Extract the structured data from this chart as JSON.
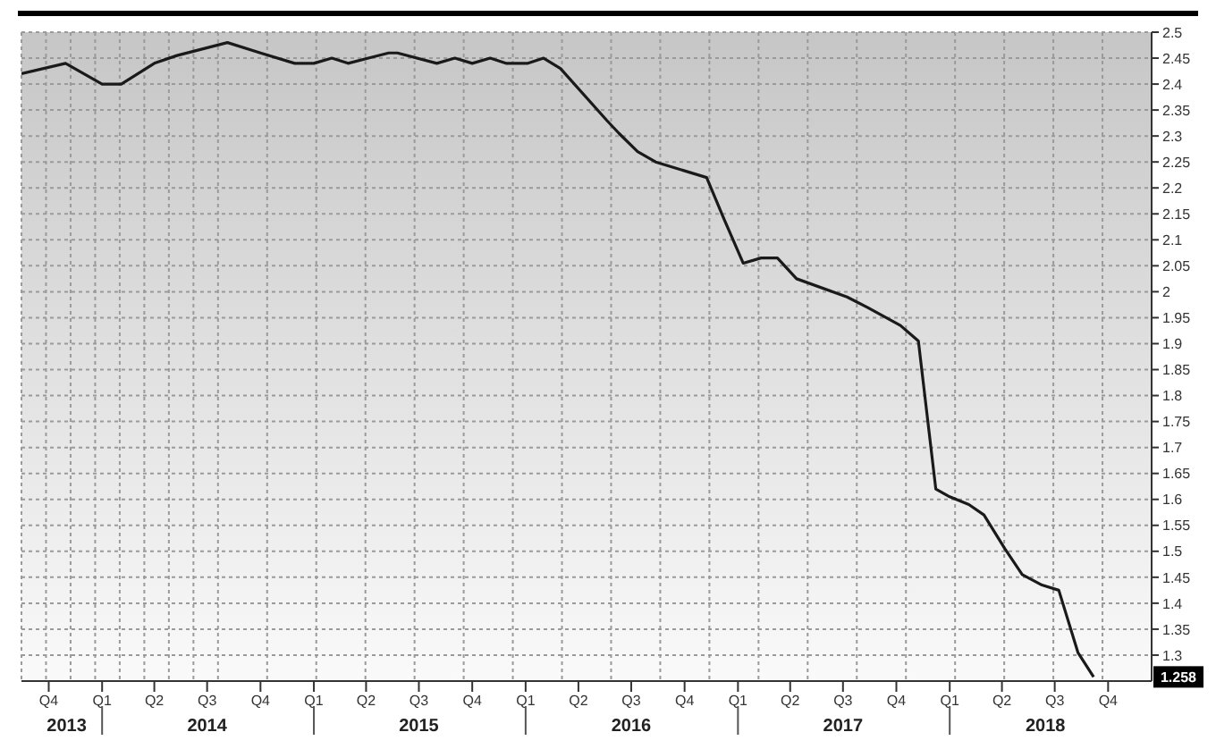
{
  "chart_data": {
    "type": "line",
    "x": [
      "2013-08-15",
      "2013-10-30",
      "2014-01-01",
      "2014-02-03",
      "2014-04-01",
      "2014-05-10",
      "2014-08-05",
      "2014-10-01",
      "2014-11-29",
      "2015-01-01",
      "2015-02-01",
      "2015-03-01",
      "2015-04-05",
      "2015-05-10",
      "2015-05-25",
      "2015-08-01",
      "2015-09-01",
      "2015-10-01",
      "2015-11-01",
      "2015-11-28",
      "2016-01-05",
      "2016-02-01",
      "2016-03-01",
      "2016-05-20",
      "2016-06-10",
      "2016-07-12",
      "2016-08-12",
      "2016-11-08",
      "2016-12-08",
      "2017-01-10",
      "2017-02-10",
      "2017-03-10",
      "2017-04-12",
      "2017-07-08",
      "2017-08-12",
      "2017-10-08",
      "2017-11-08",
      "2017-12-08",
      "2018-01-01",
      "2018-02-03",
      "2018-03-01",
      "2018-04-06",
      "2018-05-06",
      "2018-06-09",
      "2018-07-08",
      "2018-08-10",
      "2018-09-06"
    ],
    "series": [
      {
        "color": "#1a1a1a",
        "values": [
          2.42,
          2.44,
          2.4,
          2.4,
          2.44,
          2.455,
          2.48,
          2.46,
          2.44,
          2.44,
          2.45,
          2.44,
          2.45,
          2.46,
          2.46,
          2.44,
          2.45,
          2.44,
          2.45,
          2.44,
          2.44,
          2.45,
          2.43,
          2.33,
          2.305,
          2.27,
          2.25,
          2.22,
          2.14,
          2.055,
          2.065,
          2.065,
          2.025,
          1.99,
          1.97,
          1.935,
          1.905,
          1.62,
          1.605,
          1.59,
          1.57,
          1.505,
          1.455,
          1.435,
          1.425,
          1.305,
          1.258
        ]
      }
    ],
    "xlim": [
      "2013-08-15",
      "2018-12-15"
    ],
    "xticks": [
      {
        "value": "2013-10-01",
        "label": "Q4"
      },
      {
        "value": "2014-01-01",
        "label": "Q1"
      },
      {
        "value": "2014-04-01",
        "label": "Q2"
      },
      {
        "value": "2014-07-01",
        "label": "Q3"
      },
      {
        "value": "2014-10-01",
        "label": "Q4"
      },
      {
        "value": "2015-01-01",
        "label": "Q1"
      },
      {
        "value": "2015-04-01",
        "label": "Q2"
      },
      {
        "value": "2015-07-01",
        "label": "Q3"
      },
      {
        "value": "2015-10-01",
        "label": "Q4"
      },
      {
        "value": "2016-01-01",
        "label": "Q1"
      },
      {
        "value": "2016-04-01",
        "label": "Q2"
      },
      {
        "value": "2016-07-01",
        "label": "Q3"
      },
      {
        "value": "2016-10-01",
        "label": "Q4"
      },
      {
        "value": "2017-01-01",
        "label": "Q1"
      },
      {
        "value": "2017-04-01",
        "label": "Q2"
      },
      {
        "value": "2017-07-01",
        "label": "Q3"
      },
      {
        "value": "2017-10-01",
        "label": "Q4"
      },
      {
        "value": "2018-01-01",
        "label": "Q1"
      },
      {
        "value": "2018-04-01",
        "label": "Q2"
      },
      {
        "value": "2018-07-01",
        "label": "Q3"
      },
      {
        "value": "2018-10-01",
        "label": "Q4"
      }
    ],
    "x2ticks": [
      {
        "value": "2013-11-01",
        "label": "2013"
      },
      {
        "value": "2014-01-01",
        "label": null
      },
      {
        "value": "2014-07-01",
        "label": "2014"
      },
      {
        "value": "2015-01-01",
        "label": null
      },
      {
        "value": "2015-07-01",
        "label": "2015"
      },
      {
        "value": "2016-01-01",
        "label": null
      },
      {
        "value": "2016-07-01",
        "label": "2016"
      },
      {
        "value": "2017-01-01",
        "label": null
      },
      {
        "value": "2017-07-01",
        "label": "2017"
      },
      {
        "value": "2018-01-01",
        "label": null
      },
      {
        "value": "2018-06-15",
        "label": "2018"
      }
    ],
    "ylim": [
      1.25,
      2.5
    ],
    "yticks": [
      1.3,
      1.35,
      1.4,
      1.45,
      1.5,
      1.55,
      1.6,
      1.65,
      1.7,
      1.75,
      1.8,
      1.85,
      1.9,
      1.95,
      2,
      2.05,
      2.1,
      2.15,
      2.2,
      2.25,
      2.3,
      2.35,
      2.4,
      2.45,
      2.5
    ],
    "x2lim": [
      "2013-08-15",
      "2018-12-15"
    ],
    "annotations": [
      "1.258"
    ],
    "grid": true,
    "legend": false,
    "marker": "none",
    "line_style": "solid"
  }
}
